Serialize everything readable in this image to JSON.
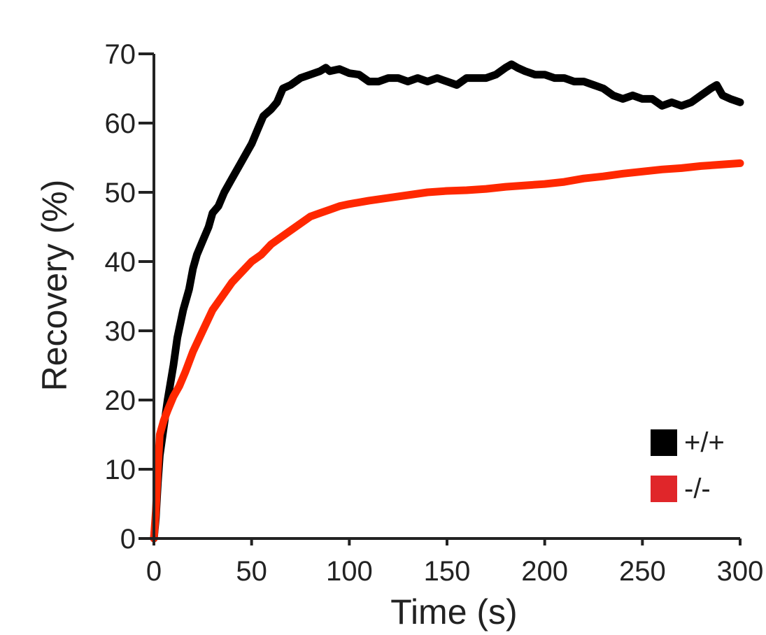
{
  "chart_data": {
    "type": "line",
    "title": "",
    "xlabel": "Time (s)",
    "ylabel": "Recovery (%)",
    "xlim": [
      0,
      300
    ],
    "ylim": [
      0,
      70
    ],
    "xticks": [
      0,
      50,
      100,
      150,
      200,
      250,
      300
    ],
    "yticks": [
      0,
      10,
      20,
      30,
      40,
      50,
      60,
      70
    ],
    "grid": false,
    "legend": {
      "position": "bottom-right"
    },
    "series": [
      {
        "name": "+/+",
        "color": "#000000",
        "x": [
          0,
          1,
          2,
          3,
          5,
          7,
          10,
          12,
          15,
          18,
          20,
          22,
          25,
          28,
          30,
          33,
          36,
          40,
          44,
          48,
          50,
          53,
          56,
          60,
          63,
          66,
          70,
          75,
          80,
          85,
          88,
          90,
          95,
          100,
          105,
          110,
          115,
          120,
          125,
          130,
          135,
          140,
          145,
          150,
          155,
          160,
          165,
          170,
          175,
          180,
          183,
          186,
          190,
          195,
          200,
          205,
          210,
          215,
          220,
          225,
          230,
          235,
          240,
          245,
          250,
          255,
          260,
          265,
          270,
          275,
          280,
          285,
          288,
          291,
          295,
          300
        ],
        "y": [
          0,
          3,
          8,
          12,
          16,
          20,
          25,
          29,
          33,
          36,
          39,
          41,
          43,
          45,
          47,
          48,
          50,
          52,
          54,
          56,
          57,
          59,
          61,
          62,
          63,
          65,
          65.5,
          66.5,
          67,
          67.5,
          68,
          67.5,
          67.8,
          67.2,
          67,
          66,
          66,
          66.5,
          66.5,
          66,
          66.5,
          66,
          66.5,
          66,
          65.5,
          66.5,
          66.5,
          66.5,
          67,
          68,
          68.5,
          68,
          67.5,
          67,
          67,
          66.5,
          66.5,
          66,
          66,
          65.5,
          65,
          64,
          63.5,
          64,
          63.5,
          63.5,
          62.5,
          63,
          62.5,
          63,
          64,
          65,
          65.5,
          64,
          63.5,
          63
        ]
      },
      {
        "name": "-/-",
        "color": "#ff2800",
        "x": [
          0,
          1,
          2,
          3,
          5,
          7,
          10,
          13,
          16,
          20,
          25,
          30,
          35,
          40,
          45,
          50,
          55,
          60,
          65,
          70,
          75,
          80,
          85,
          90,
          95,
          100,
          110,
          120,
          130,
          140,
          150,
          160,
          170,
          180,
          190,
          200,
          210,
          220,
          230,
          240,
          250,
          260,
          270,
          280,
          290,
          300
        ],
        "y": [
          0,
          4,
          10,
          15,
          17,
          18.5,
          20.5,
          22,
          24,
          27,
          30,
          33,
          35,
          37,
          38.5,
          40,
          41,
          42.5,
          43.5,
          44.5,
          45.5,
          46.5,
          47,
          47.5,
          48,
          48.3,
          48.8,
          49.2,
          49.6,
          50,
          50.2,
          50.3,
          50.5,
          50.8,
          51,
          51.2,
          51.5,
          52,
          52.3,
          52.7,
          53,
          53.3,
          53.5,
          53.8,
          54,
          54.2
        ]
      }
    ]
  }
}
